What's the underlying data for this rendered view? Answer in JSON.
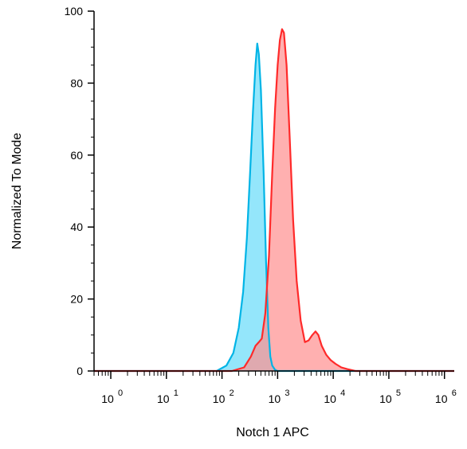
{
  "chart_data": {
    "type": "area",
    "xlabel": "Notch 1 APC",
    "ylabel": "Normalized To Mode",
    "x_scale": "log",
    "xlim": [
      0.5,
      1500000
    ],
    "ylim": [
      0,
      100
    ],
    "y_ticks": [
      {
        "value": 0,
        "label": "0"
      },
      {
        "value": 20,
        "label": "20"
      },
      {
        "value": 40,
        "label": "40"
      },
      {
        "value": 60,
        "label": "60"
      },
      {
        "value": 80,
        "label": "80"
      },
      {
        "value": 100,
        "label": "100"
      }
    ],
    "x_ticks": [
      {
        "value": 1,
        "base": "10",
        "exp": "0"
      },
      {
        "value": 10,
        "base": "10",
        "exp": "1"
      },
      {
        "value": 100,
        "base": "10",
        "exp": "2"
      },
      {
        "value": 1000,
        "base": "10",
        "exp": "3"
      },
      {
        "value": 10000,
        "base": "10",
        "exp": "4"
      },
      {
        "value": 100000,
        "base": "10",
        "exp": "5"
      },
      {
        "value": 1000000,
        "base": "10",
        "exp": "6"
      }
    ],
    "grid": false,
    "series": [
      {
        "color": "#00b4e6",
        "fill": "#66dcfa",
        "points": [
          [
            0.5,
            0
          ],
          [
            80,
            0
          ],
          [
            120,
            1.5
          ],
          [
            160,
            5
          ],
          [
            200,
            12
          ],
          [
            240,
            22
          ],
          [
            280,
            37
          ],
          [
            320,
            55
          ],
          [
            360,
            72
          ],
          [
            400,
            85
          ],
          [
            430,
            91
          ],
          [
            460,
            88
          ],
          [
            500,
            78
          ],
          [
            560,
            55
          ],
          [
            620,
            30
          ],
          [
            680,
            12
          ],
          [
            740,
            4
          ],
          [
            800,
            1.5
          ],
          [
            900,
            0.3
          ],
          [
            1000,
            0
          ],
          [
            1500000,
            0
          ]
        ]
      },
      {
        "color": "#ff2a2a",
        "fill": "#ff8f8f",
        "points": [
          [
            0.5,
            0
          ],
          [
            150,
            0
          ],
          [
            250,
            1
          ],
          [
            330,
            4
          ],
          [
            400,
            7
          ],
          [
            460,
            8
          ],
          [
            520,
            9
          ],
          [
            600,
            16
          ],
          [
            700,
            32
          ],
          [
            800,
            55
          ],
          [
            900,
            73
          ],
          [
            1000,
            85
          ],
          [
            1100,
            92
          ],
          [
            1200,
            95
          ],
          [
            1300,
            94
          ],
          [
            1450,
            85
          ],
          [
            1650,
            65
          ],
          [
            1900,
            42
          ],
          [
            2200,
            25
          ],
          [
            2600,
            14
          ],
          [
            3100,
            8
          ],
          [
            3600,
            8.5
          ],
          [
            4200,
            10
          ],
          [
            4800,
            11
          ],
          [
            5400,
            10
          ],
          [
            6200,
            7
          ],
          [
            7500,
            4.5
          ],
          [
            9000,
            3
          ],
          [
            11000,
            2
          ],
          [
            14000,
            1
          ],
          [
            18000,
            0.5
          ],
          [
            25000,
            0
          ],
          [
            1500000,
            0
          ]
        ]
      }
    ]
  }
}
